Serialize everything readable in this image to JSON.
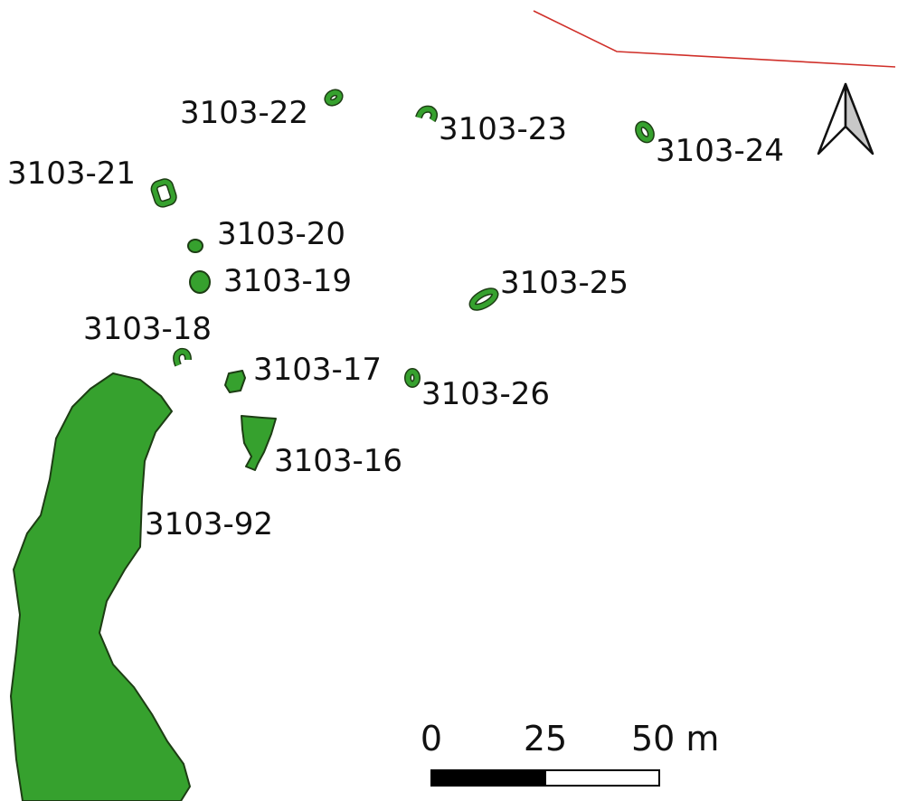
{
  "colors": {
    "feature_fill": "#36a12e",
    "feature_stroke": "#1d3d14",
    "boundary_line": "#d0302a",
    "label_text": "#111111"
  },
  "north_arrow": {
    "icon": "north-arrow-icon"
  },
  "features": [
    {
      "id": "3103-16",
      "label": "3103-16"
    },
    {
      "id": "3103-17",
      "label": "3103-17"
    },
    {
      "id": "3103-18",
      "label": "3103-18"
    },
    {
      "id": "3103-19",
      "label": "3103-19"
    },
    {
      "id": "3103-20",
      "label": "3103-20"
    },
    {
      "id": "3103-21",
      "label": "3103-21"
    },
    {
      "id": "3103-22",
      "label": "3103-22"
    },
    {
      "id": "3103-23",
      "label": "3103-23"
    },
    {
      "id": "3103-24",
      "label": "3103-24"
    },
    {
      "id": "3103-25",
      "label": "3103-25"
    },
    {
      "id": "3103-26",
      "label": "3103-26"
    },
    {
      "id": "3103-92",
      "label": "3103-92"
    }
  ],
  "scale_bar": {
    "tick_labels": [
      "0",
      "25",
      "50 m"
    ]
  }
}
